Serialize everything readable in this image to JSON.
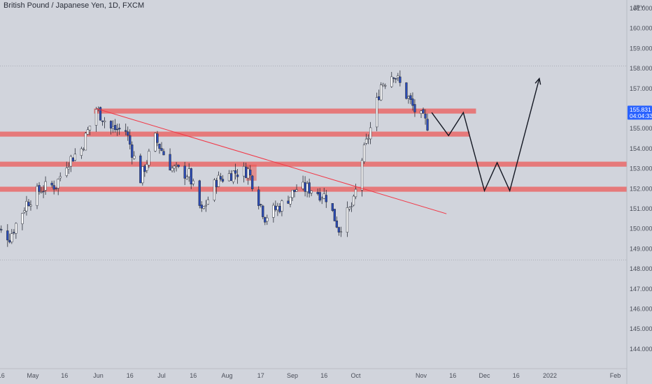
{
  "header": {
    "title": "British Pound / Japanese Yen, 1D, FXCM"
  },
  "price_axis": {
    "currency": "JPY",
    "ticks": [
      "161.000",
      "160.000",
      "159.000",
      "158.000",
      "157.000",
      "156.000",
      "155.000",
      "154.000",
      "153.000",
      "152.000",
      "151.000",
      "150.000",
      "149.000",
      "148.000",
      "147.000",
      "146.000",
      "145.000",
      "144.000"
    ]
  },
  "time_axis": {
    "ticks": [
      "16",
      "May",
      "16",
      "Jun",
      "16",
      "Jul",
      "16",
      "Aug",
      "17",
      "Sep",
      "16",
      "Oct",
      "Nov",
      "16",
      "Dec",
      "16",
      "2022",
      "Feb"
    ]
  },
  "current_price": {
    "value": "155.831",
    "countdown": "04:04:33",
    "color": "#2962ff"
  },
  "colors": {
    "background": "#d1d4dc",
    "up_candle": "#ffffff",
    "down_candle": "#2b4bb5",
    "wick": "#2a2e39",
    "zone": "#ef5350",
    "trendline": "#f23645",
    "projection": "#131722"
  },
  "chart_data": {
    "type": "candlestick",
    "title": "British Pound / Japanese Yen, 1D, FXCM",
    "ylabel": "JPY",
    "ylim": [
      143.3,
      161.5
    ],
    "x_ticks": [
      "16",
      "May",
      "16",
      "Jun",
      "16",
      "Jul",
      "16",
      "Aug",
      "17",
      "Sep",
      "16",
      "Oct",
      "Nov",
      "16",
      "Dec",
      "16",
      "2022",
      "Feb"
    ],
    "close_path": [
      {
        "date": "2021-04-12",
        "close": 150.1
      },
      {
        "date": "2021-04-20",
        "close": 149.6
      },
      {
        "date": "2021-04-28",
        "close": 151.3
      },
      {
        "date": "2021-05-05",
        "close": 152.0
      },
      {
        "date": "2021-05-12",
        "close": 152.2
      },
      {
        "date": "2021-05-17",
        "close": 153.3
      },
      {
        "date": "2021-05-24",
        "close": 154.0
      },
      {
        "date": "2021-05-31",
        "close": 156.0
      },
      {
        "date": "2021-06-07",
        "close": 155.0
      },
      {
        "date": "2021-06-14",
        "close": 154.9
      },
      {
        "date": "2021-06-21",
        "close": 152.5
      },
      {
        "date": "2021-06-28",
        "close": 154.5
      },
      {
        "date": "2021-07-06",
        "close": 153.0
      },
      {
        "date": "2021-07-14",
        "close": 152.7
      },
      {
        "date": "2021-07-20",
        "close": 150.8
      },
      {
        "date": "2021-07-27",
        "close": 152.4
      },
      {
        "date": "2021-08-04",
        "close": 152.8
      },
      {
        "date": "2021-08-11",
        "close": 152.9
      },
      {
        "date": "2021-08-19",
        "close": 150.6
      },
      {
        "date": "2021-08-27",
        "close": 151.2
      },
      {
        "date": "2021-09-03",
        "close": 152.0
      },
      {
        "date": "2021-09-10",
        "close": 152.0
      },
      {
        "date": "2021-09-17",
        "close": 151.6
      },
      {
        "date": "2021-09-23",
        "close": 150.0
      },
      {
        "date": "2021-09-30",
        "close": 151.3
      },
      {
        "date": "2021-10-04",
        "close": 153.5
      },
      {
        "date": "2021-10-08",
        "close": 155.0
      },
      {
        "date": "2021-10-13",
        "close": 157.2
      },
      {
        "date": "2021-10-19",
        "close": 157.8
      },
      {
        "date": "2021-10-22",
        "close": 157.2
      },
      {
        "date": "2021-10-26",
        "close": 156.5
      },
      {
        "date": "2021-10-29",
        "close": 155.9
      },
      {
        "date": "2021-11-04",
        "close": 155.2
      }
    ],
    "current_price": 155.831,
    "extremes": {
      "high": 158.12,
      "low": 148.45
    },
    "horizontal_lines": [
      158.12,
      148.45
    ],
    "zones": [
      {
        "from": "2021-05-30",
        "to": "2021-11-27",
        "low": 155.75,
        "high": 156.0
      },
      {
        "from": "2021-04-01",
        "to": "2021-11-24",
        "low": 154.6,
        "high": 154.85
      },
      {
        "from": "2021-04-01",
        "to": "2022-02-28",
        "low": 153.1,
        "high": 153.35
      },
      {
        "from": "2021-04-01",
        "to": "2022-02-28",
        "low": 151.85,
        "high": 152.1
      }
    ],
    "trendline": [
      {
        "date": "2021-05-31",
        "price": 156.0
      },
      {
        "date": "2021-11-13",
        "price": 150.75
      }
    ],
    "highlight_box": {
      "from": "2021-08-10",
      "to": "2021-08-15",
      "low": 152.4,
      "high": 153.2
    },
    "projection": [
      {
        "date": "2021-11-06",
        "price": 155.8
      },
      {
        "date": "2021-11-14",
        "price": 154.65
      },
      {
        "date": "2021-11-21",
        "price": 155.8
      },
      {
        "date": "2021-12-01",
        "price": 151.9
      },
      {
        "date": "2021-12-07",
        "price": 153.3
      },
      {
        "date": "2021-12-13",
        "price": 151.9
      },
      {
        "date": "2021-12-27",
        "price": 157.5
      }
    ]
  }
}
